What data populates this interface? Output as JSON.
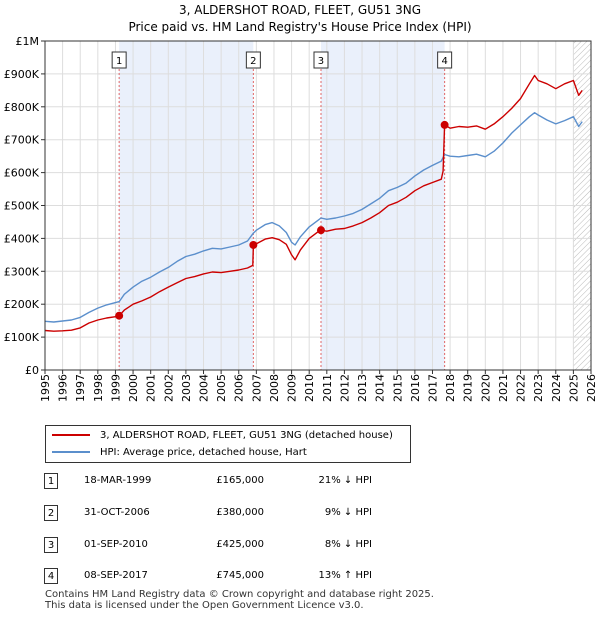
{
  "chart_data": {
    "type": "line",
    "title": "3, ALDERSHOT ROAD, FLEET, GU51 3NG",
    "subtitle": "Price paid vs. HM Land Registry's House Price Index (HPI)",
    "xlim": [
      1995,
      2026
    ],
    "ylim": [
      0,
      1000000
    ],
    "y_ticks": [
      0,
      100000,
      200000,
      300000,
      400000,
      500000,
      600000,
      700000,
      800000,
      900000,
      1000000
    ],
    "y_tick_labels": [
      "£0",
      "£100K",
      "£200K",
      "£300K",
      "£400K",
      "£500K",
      "£600K",
      "£700K",
      "£800K",
      "£900K",
      "£1M"
    ],
    "x_ticks": [
      1995,
      1996,
      1997,
      1998,
      1999,
      2000,
      2001,
      2002,
      2003,
      2004,
      2005,
      2006,
      2007,
      2008,
      2009,
      2010,
      2011,
      2012,
      2013,
      2014,
      2015,
      2016,
      2017,
      2018,
      2019,
      2020,
      2021,
      2022,
      2023,
      2024,
      2025,
      2026
    ],
    "x_tick_labels": [
      "1995",
      "1996",
      "1997",
      "1998",
      "1999",
      "2000",
      "2001",
      "2002",
      "2003",
      "2004",
      "2005",
      "2006",
      "2007",
      "2008",
      "2009",
      "2010",
      "2011",
      "2012",
      "2013",
      "2014",
      "2015",
      "2016",
      "2017",
      "2018",
      "2019",
      "2020",
      "2021",
      "2022",
      "2023",
      "2024",
      "2025",
      "2026"
    ],
    "shaded_ranges": [
      [
        1999.21,
        2006.83
      ],
      [
        2010.67,
        2017.69
      ]
    ],
    "hatch_from": 2025.0,
    "series": [
      {
        "name": "3, ALDERSHOT ROAD, FLEET, GU51 3NG (detached house)",
        "color": "#cc0000",
        "x": [
          1995.0,
          1995.5,
          1996.0,
          1996.5,
          1997.0,
          1997.5,
          1998.0,
          1998.5,
          1999.0,
          1999.21,
          1999.5,
          2000.0,
          2000.5,
          2001.0,
          2001.5,
          2002.0,
          2002.5,
          2003.0,
          2003.5,
          2004.0,
          2004.5,
          2005.0,
          2005.5,
          2006.0,
          2006.5,
          2006.8,
          2006.83,
          2007.0,
          2007.5,
          2007.9,
          2008.3,
          2008.7,
          2009.0,
          2009.2,
          2009.5,
          2010.0,
          2010.5,
          2010.67,
          2011.0,
          2011.5,
          2012.0,
          2012.5,
          2013.0,
          2013.5,
          2014.0,
          2014.5,
          2015.0,
          2015.5,
          2016.0,
          2016.5,
          2017.0,
          2017.5,
          2017.6,
          2017.69,
          2018.0,
          2018.5,
          2019.0,
          2019.5,
          2020.0,
          2020.5,
          2021.0,
          2021.5,
          2022.0,
          2022.5,
          2022.8,
          2023.0,
          2023.5,
          2024.0,
          2024.5,
          2025.0,
          2025.3,
          2025.5
        ],
        "y": [
          120000,
          118000,
          119000,
          121000,
          128000,
          143000,
          152000,
          158000,
          162000,
          165000,
          182000,
          200000,
          210000,
          222000,
          238000,
          252000,
          265000,
          278000,
          284000,
          292000,
          298000,
          296000,
          300000,
          304000,
          310000,
          318000,
          380000,
          384000,
          398000,
          402000,
          396000,
          382000,
          350000,
          335000,
          365000,
          400000,
          420000,
          425000,
          422000,
          428000,
          430000,
          438000,
          448000,
          462000,
          478000,
          500000,
          510000,
          525000,
          545000,
          560000,
          570000,
          580000,
          605000,
          745000,
          735000,
          740000,
          738000,
          742000,
          732000,
          748000,
          770000,
          795000,
          825000,
          870000,
          895000,
          880000,
          870000,
          855000,
          870000,
          880000,
          835000,
          850000
        ]
      },
      {
        "name": "HPI: Average price, detached house, Hart",
        "color": "#5b8fcc",
        "x": [
          1995.0,
          1995.5,
          1996.0,
          1996.5,
          1997.0,
          1997.5,
          1998.0,
          1998.5,
          1999.0,
          1999.21,
          1999.5,
          2000.0,
          2000.5,
          2001.0,
          2001.5,
          2002.0,
          2002.5,
          2003.0,
          2003.5,
          2004.0,
          2004.5,
          2005.0,
          2005.5,
          2006.0,
          2006.5,
          2006.83,
          2007.0,
          2007.5,
          2007.9,
          2008.3,
          2008.7,
          2009.0,
          2009.2,
          2009.5,
          2010.0,
          2010.5,
          2010.67,
          2011.0,
          2011.5,
          2012.0,
          2012.5,
          2013.0,
          2013.5,
          2014.0,
          2014.5,
          2015.0,
          2015.5,
          2016.0,
          2016.5,
          2017.0,
          2017.5,
          2017.69,
          2018.0,
          2018.5,
          2019.0,
          2019.5,
          2020.0,
          2020.5,
          2021.0,
          2021.5,
          2022.0,
          2022.5,
          2022.8,
          2023.0,
          2023.5,
          2024.0,
          2024.5,
          2025.0,
          2025.3,
          2025.5
        ],
        "y": [
          148000,
          146000,
          149000,
          152000,
          160000,
          175000,
          188000,
          198000,
          205000,
          208000,
          230000,
          252000,
          270000,
          282000,
          298000,
          312000,
          330000,
          345000,
          352000,
          362000,
          370000,
          368000,
          374000,
          380000,
          392000,
          416000,
          425000,
          442000,
          448000,
          438000,
          418000,
          388000,
          380000,
          405000,
          435000,
          455000,
          462000,
          458000,
          462000,
          468000,
          476000,
          488000,
          505000,
          522000,
          545000,
          555000,
          568000,
          590000,
          608000,
          622000,
          635000,
          655000,
          650000,
          648000,
          652000,
          656000,
          648000,
          665000,
          690000,
          720000,
          745000,
          770000,
          782000,
          775000,
          760000,
          748000,
          758000,
          770000,
          740000,
          755000
        ]
      }
    ],
    "sales": [
      {
        "label": "1",
        "x": 1999.21,
        "y": 165000
      },
      {
        "label": "2",
        "x": 2006.83,
        "y": 380000
      },
      {
        "label": "3",
        "x": 2010.67,
        "y": 425000
      },
      {
        "label": "4",
        "x": 2017.69,
        "y": 745000
      }
    ]
  },
  "legend": {
    "property_label": "3, ALDERSHOT ROAD, FLEET, GU51 3NG (detached house)",
    "hpi_label": "HPI: Average price, detached house, Hart",
    "property_color": "#cc0000",
    "hpi_color": "#5b8fcc"
  },
  "sales_table": [
    {
      "num": "1",
      "date": "18-MAR-1999",
      "price": "£165,000",
      "hpi": "21% ↓ HPI"
    },
    {
      "num": "2",
      "date": "31-OCT-2006",
      "price": "£380,000",
      "hpi": "9% ↓ HPI"
    },
    {
      "num": "3",
      "date": "01-SEP-2010",
      "price": "£425,000",
      "hpi": "8% ↓ HPI"
    },
    {
      "num": "4",
      "date": "08-SEP-2017",
      "price": "£745,000",
      "hpi": "13% ↑ HPI"
    }
  ],
  "footer": {
    "line1": "Contains HM Land Registry data © Crown copyright and database right 2025.",
    "line2": "This data is licensed under the Open Government Licence v3.0."
  }
}
